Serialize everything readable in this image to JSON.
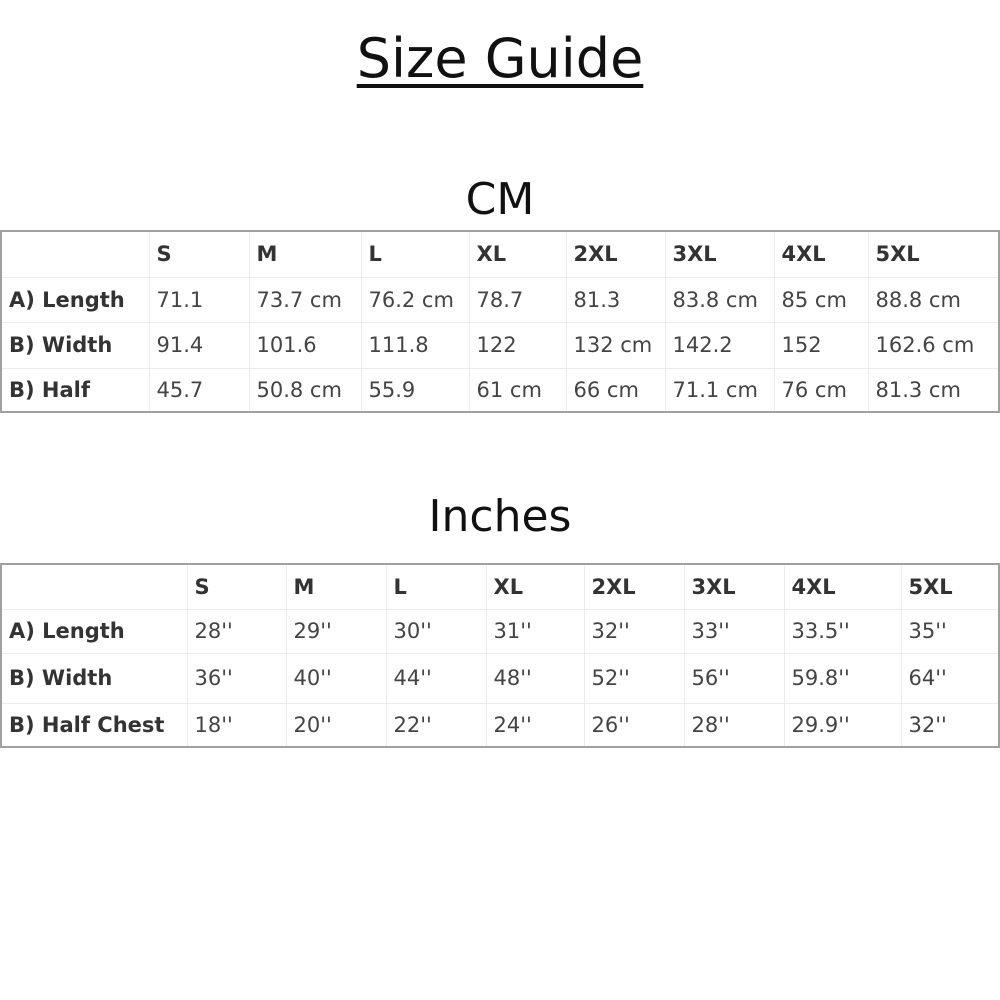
{
  "title": "Size Guide",
  "cm": {
    "heading": "CM",
    "headers": [
      "",
      "S",
      "M",
      "L",
      "XL",
      "2XL",
      "3XL",
      "4XL",
      "5XL"
    ],
    "rows": [
      [
        "A) Length",
        "71.1",
        "73.7 cm",
        "76.2 cm",
        "78.7",
        "81.3",
        "83.8 cm",
        "85 cm",
        "88.8 cm"
      ],
      [
        "B) Width",
        "91.4",
        "101.6",
        "111.8",
        "122",
        "132 cm",
        "142.2",
        "152",
        "162.6 cm"
      ],
      [
        "B) Half",
        "45.7",
        "50.8 cm",
        "55.9",
        "61 cm",
        "66 cm",
        "71.1 cm",
        "76 cm",
        "81.3 cm"
      ]
    ]
  },
  "inches": {
    "heading": "Inches",
    "headers": [
      "",
      "S",
      "M",
      "L",
      "XL",
      "2XL",
      "3XL",
      "4XL",
      "5XL"
    ],
    "rows": [
      [
        "A) Length",
        "28''",
        "29''",
        "30''",
        "31''",
        "32''",
        "33''",
        "33.5''",
        "35''"
      ],
      [
        "B) Width",
        "36''",
        "40''",
        "44''",
        "48''",
        "52''",
        "56''",
        "59.8''",
        "64''"
      ],
      [
        "B) Half Chest",
        "18''",
        "20''",
        "22''",
        "24''",
        "26''",
        "28''",
        "29.9''",
        "32''"
      ]
    ]
  }
}
